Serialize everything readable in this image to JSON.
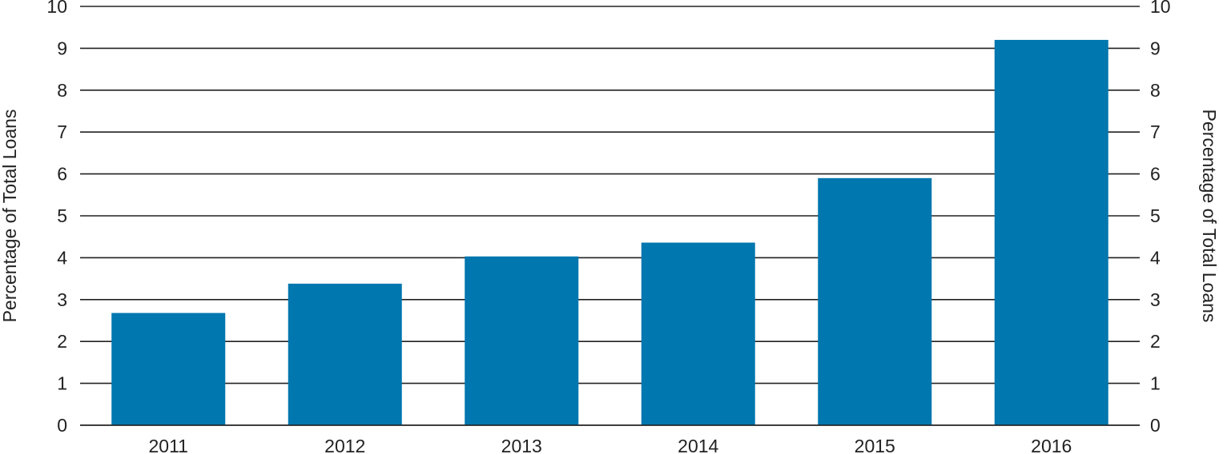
{
  "chart_data": {
    "type": "bar",
    "categories": [
      "2011",
      "2012",
      "2013",
      "2014",
      "2015",
      "2016"
    ],
    "values": [
      2.68,
      3.38,
      4.03,
      4.36,
      5.9,
      9.2
    ],
    "title": "",
    "xlabel": "",
    "ylabel": "Percentage of Total Loans",
    "ylabel_right": "Percentage of Total Loans",
    "ylim": [
      0,
      10
    ],
    "yticks": [
      "0",
      "1",
      "2",
      "3",
      "4",
      "5",
      "6",
      "7",
      "8",
      "9",
      "10"
    ],
    "grid": true,
    "legend": "none",
    "colors": {
      "bar": "#0077ae",
      "grid": "#222222",
      "text": "#222222"
    }
  }
}
